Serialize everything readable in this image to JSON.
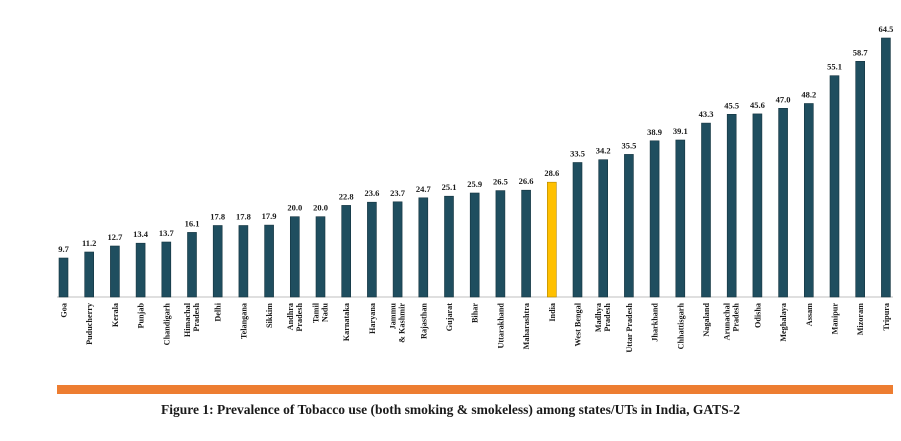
{
  "chart_data": {
    "type": "bar",
    "categories": [
      [
        "Goa"
      ],
      [
        "Puducherry"
      ],
      [
        "Kerala"
      ],
      [
        "Punjab"
      ],
      [
        "Chandigarh"
      ],
      [
        "Himachal",
        "Pradesh"
      ],
      [
        "Delhi"
      ],
      [
        "Telangana"
      ],
      [
        "Sikkim"
      ],
      [
        "Andhra",
        "Pradesh"
      ],
      [
        "Tamil",
        "Nadu"
      ],
      [
        "Karnataka"
      ],
      [
        "Haryana"
      ],
      [
        "Jammu",
        "& Kashmir"
      ],
      [
        "Rajasthan"
      ],
      [
        "Gujarat"
      ],
      [
        "Bihar"
      ],
      [
        "Uttarakhand"
      ],
      [
        "Maharashtra"
      ],
      [
        "India"
      ],
      [
        "West Bengal"
      ],
      [
        "Madhya",
        "Pradesh"
      ],
      [
        "Uttar Pradesh"
      ],
      [
        "Jharkhand"
      ],
      [
        "Chhattisgarh"
      ],
      [
        "Nagaland"
      ],
      [
        "Arunachal",
        "Pradesh"
      ],
      [
        "Odisha"
      ],
      [
        "Meghalaya"
      ],
      [
        "Assam"
      ],
      [
        "Manipur"
      ],
      [
        "Mizoram"
      ],
      [
        "Tripura"
      ]
    ],
    "values": [
      9.7,
      11.2,
      12.7,
      13.4,
      13.7,
      16.1,
      17.8,
      17.8,
      17.9,
      20.0,
      20.0,
      22.8,
      23.6,
      23.7,
      24.7,
      25.1,
      25.9,
      26.5,
      26.6,
      28.6,
      33.5,
      34.2,
      35.5,
      38.9,
      39.1,
      43.3,
      45.5,
      45.6,
      47.0,
      48.2,
      55.1,
      58.7,
      64.5
    ],
    "value_labels": [
      "9.7",
      "11.2",
      "12.7",
      "13.4",
      "13.7",
      "16.1",
      "17.8",
      "17.8",
      "17.9",
      "20.0",
      "20.0",
      "22.8",
      "23.6",
      "23.7",
      "24.7",
      "25.1",
      "25.9",
      "26.5",
      "26.6",
      "28.6",
      "33.5",
      "34.2",
      "35.5",
      "38.9",
      "39.1",
      "43.3",
      "45.5",
      "45.6",
      "47.0",
      "48.2",
      "55.1",
      "58.7",
      "64.5"
    ],
    "highlight_index": 19,
    "colors": {
      "bar": "#1f4e5f",
      "highlight": "#ffc000",
      "divider": "#ed7d31"
    },
    "ylim": [
      0,
      64.5
    ],
    "grid": false,
    "legend": "none"
  },
  "caption": "Figure 1: Prevalence of Tobacco use (both smoking & smokeless) among states/UTs in India, GATS-2"
}
